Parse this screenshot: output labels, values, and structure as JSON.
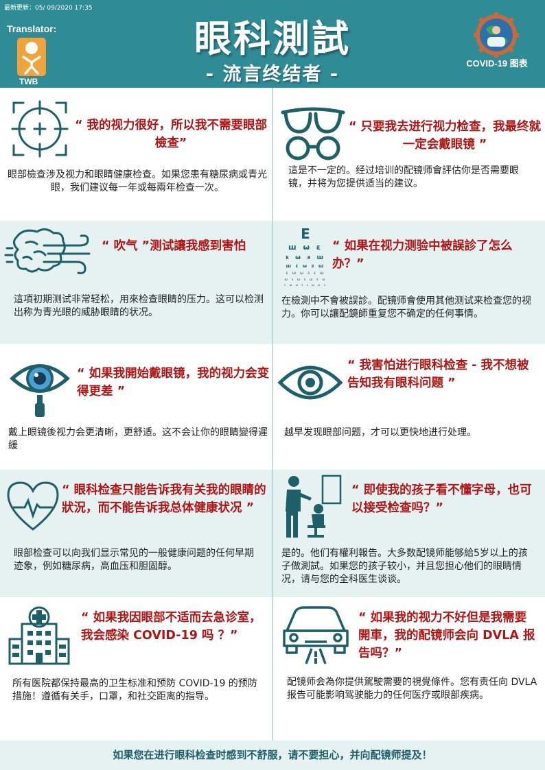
{
  "header": {
    "updated": "最新更新：05/ 09/2020 17:35",
    "translator_label": "Translator:",
    "twb_label": "TWB",
    "title": "眼科測試",
    "subtitle": "- 流言终结者 -",
    "covid_label": "COVID-19 图表"
  },
  "colors": {
    "header": "#2f8c97",
    "question": "#b01515",
    "icon": "#1e5f6a",
    "band": "#e6f1f2",
    "twb_orange": "#f2a23a"
  },
  "myths": [
    {
      "icon": "crosshair-target-icon",
      "question": "“ 我的视力很好，所以我不需要眼部檢查”",
      "answer": "眼部檢查涉及视力和眼睛健康检查。如果您患有糖尿病或青光眼，我们建议每一年或每兩年检查一次。"
    },
    {
      "icon": "glasses-icon",
      "question": "“ 只要我去进行视力检查，我最终就一定会戴眼镜 ”",
      "answer": "這是不一定的。经过培训的配镜师會評估你是否需要眼镜，并将为您提供适当的建议。"
    },
    {
      "icon": "air-puff-icon",
      "question": "“ 吹气 ”测试讓我感到害怕",
      "answer": "這項初期测试非常轻松，用來检查眼睛的压力。这可以检测出称为青光眼的威胁眼睛的状况。"
    },
    {
      "icon": "eye-chart-icon",
      "question": "“ 如果在视力测验中被誤診了怎么办？”",
      "answer": "在檢測中不會被誤診。配镜师會使用其他测试来检查您的视力。你可以讓配鏡師重复您不确定的任何事情。"
    },
    {
      "icon": "eye-magnifier-icon",
      "question": "“ 如果我開始戴眼镜，我的视力会变得更差 ”",
      "answer": "戴上眼镜後视力会更清晰，更舒适。这不会让你的眼睛變得遲緩"
    },
    {
      "icon": "eye-icon",
      "question": "“ 我害怕进行眼科检查 - 我不想被告知我有眼科问题 ”",
      "answer": "越早发现眼部问题，才可以更快地进行处理。"
    },
    {
      "icon": "heart-pulse-icon",
      "question": "“ 眼科检查只能告诉我有关我的眼睛的狀況，而不能告诉我总体健康状况 ”",
      "answer": "眼部检查可以向我们显示常见的一般健康问题的任何早期迹象，例如糖尿病，高血压和胆固醇。"
    },
    {
      "icon": "child-eye-test-icon",
      "question": "“ 即使我的孩子看不懂字母，也可以接受检查吗？”",
      "answer": "是的。他们有權利報告。大多数配镜师能够給5岁以上的孩子做測試。如果您的孩子较小，并且您担心他们的眼睛情况，请与您的全科医生谈谈。"
    },
    {
      "icon": "hospital-icon",
      "question": "“ 如果我因眼部不适而去急诊室，我会感染 COVID-19 吗 ？”",
      "answer": "所有医院都保持最高的卫生标准和预防 COVID-19 的预防措施！遵循有关手，口罩，和社交距离的指导。"
    },
    {
      "icon": "car-road-icon",
      "question": "“ 如果我的视力不好但是我需要開車，我的配镜师会向 DVLA 报告吗？”",
      "answer": "配镜师会為你提供駕駛需要的視覺條件。您有责任向 DVLA 报告可能影响驾驶能力的任何医疗或眼部疾病。"
    }
  ],
  "footer": "如果您在进行眼科检查时感到不舒服，请不要担心，并向配镜师提及！"
}
